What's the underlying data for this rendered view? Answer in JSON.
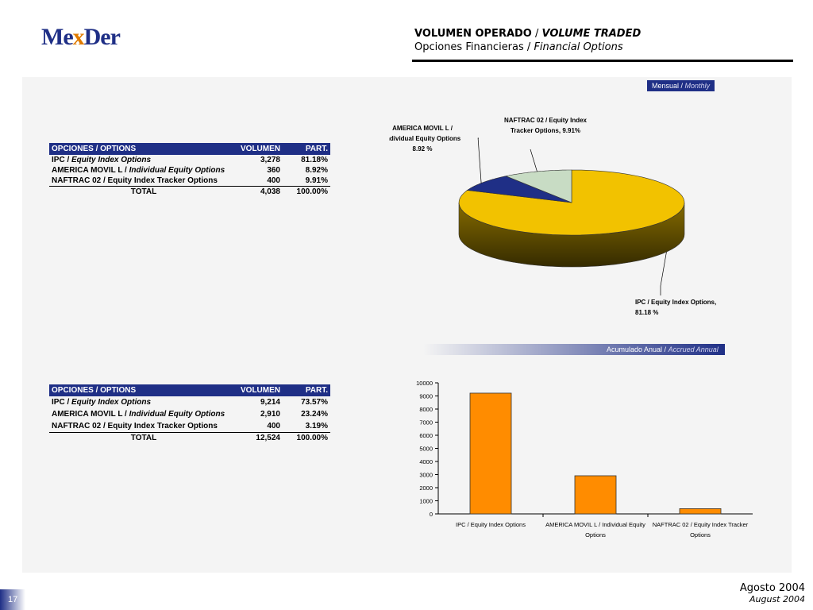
{
  "logo": {
    "pre": "Me",
    "x": "x",
    "post": "Der"
  },
  "header": {
    "title_es": "VOLUMEN OPERADO",
    "sep": " / ",
    "title_en": "VOLUME TRADED",
    "subtitle_es": "Opciones Financieras",
    "subtitle_en": "Financial Options"
  },
  "tags": {
    "monthly_es": "Mensual / ",
    "monthly_en": "Monthly",
    "annual_es": "Acumulado Anual / ",
    "annual_en": "Accrued Annual"
  },
  "table_headers": {
    "col1": "OPCIONES / OPTIONS",
    "col2": "VOLUMEN",
    "col3": "PART."
  },
  "tables": [
    {
      "rows": [
        {
          "a": "IPC / ",
          "b": "Equity Index Options",
          "vol": "3,278",
          "part": "81.18%"
        },
        {
          "a": "AMERICA MOVIL L / ",
          "b": "Individual Equity Options",
          "vol": "360",
          "part": "8.92%"
        },
        {
          "a": "NAFTRAC 02 / Equity Index Tracker Options",
          "b": "",
          "vol": "400",
          "part": "9.91%"
        }
      ],
      "total": {
        "label": "TOTAL",
        "vol": "4,038",
        "part": "100.00%"
      }
    },
    {
      "rows": [
        {
          "a": "IPC / ",
          "b": "Equity Index Options",
          "vol": "9,214",
          "part": "73.57%"
        },
        {
          "a": "AMERICA MOVIL L / ",
          "b": "Individual Equity Options",
          "vol": "2,910",
          "part": "23.24%"
        },
        {
          "a": "NAFTRAC 02 / Equity Index Tracker Options",
          "b": "",
          "vol": "400",
          "part": "3.19%"
        }
      ],
      "total": {
        "label": "TOTAL",
        "vol": "12,524",
        "part": "100.00%"
      }
    }
  ],
  "chart_data": [
    {
      "type": "pie",
      "slices": [
        {
          "label_lines": [
            "IPC / Equity Index Options,",
            "81.18 %"
          ],
          "value": 81.18,
          "color": "#f2c200"
        },
        {
          "label_lines": [
            "AMERICA MOVIL L /",
            "Individual Equity Options",
            "8.92 %"
          ],
          "value": 8.92,
          "color": "#1f2f86"
        },
        {
          "label_lines": [
            "NAFTRAC 02 / Equity Index",
            "Tracker Options, 9.91%"
          ],
          "value": 9.91,
          "color": "#c8dcc4"
        }
      ]
    },
    {
      "type": "bar",
      "categories": [
        [
          "IPC / Equity Index Options"
        ],
        [
          "AMERICA MOVIL L / Individual Equity",
          "Options"
        ],
        [
          "NAFTRAC 02 / Equity Index Tracker",
          "Options"
        ]
      ],
      "values": [
        9214,
        2910,
        400
      ],
      "ylim": [
        0,
        10000
      ],
      "yticks": [
        0,
        1000,
        2000,
        3000,
        4000,
        5000,
        6000,
        7000,
        8000,
        9000,
        10000
      ],
      "bar_color": "#ff8c00"
    }
  ],
  "footer": {
    "page": "17",
    "date_es": "Agosto 2004",
    "date_en": "August 2004"
  }
}
